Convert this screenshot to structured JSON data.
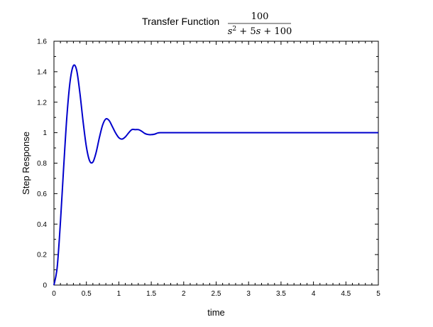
{
  "chart_data": {
    "type": "line",
    "title": {
      "prefix": "Transfer Function",
      "numerator": "100",
      "denominator": {
        "s_var": "s",
        "exponent": "2",
        "rest": " + 5",
        "s_var2": "s",
        "tail": " + 100"
      }
    },
    "xlabel": "time",
    "ylabel": "Step Response",
    "xlim": [
      0,
      5
    ],
    "ylim": [
      0,
      1.6
    ],
    "x_ticks": [
      "0",
      "0.5",
      "1",
      "1.5",
      "2",
      "2.5",
      "3",
      "3.5",
      "4",
      "4.5",
      "5"
    ],
    "y_ticks": [
      "0",
      "0.2",
      "0.4",
      "0.6",
      "0.8",
      "1",
      "1.2",
      "1.4",
      "1.6"
    ],
    "grid": false,
    "series": [
      {
        "color": "#0000cc",
        "x": [
          0,
          0.05,
          0.1,
          0.15,
          0.2,
          0.25,
          0.3,
          0.35,
          0.4,
          0.45,
          0.5,
          0.55,
          0.6,
          0.65,
          0.7,
          0.75,
          0.8,
          0.85,
          0.9,
          0.95,
          1.0,
          1.05,
          1.1,
          1.15,
          1.2,
          1.25,
          1.3,
          1.35,
          1.4,
          1.45,
          1.5,
          1.55,
          1.6,
          1.65,
          1.7,
          1.75,
          1.8,
          1.85,
          1.9,
          1.95,
          2.0,
          2.1,
          2.2,
          2.3,
          2.4,
          2.5,
          2.6,
          2.8,
          3.0,
          3.5,
          4.0,
          4.5,
          5.0
        ],
        "y": [
          0,
          0.117,
          0.413,
          0.775,
          1.11,
          1.34,
          1.44,
          1.41,
          1.26,
          1.07,
          0.907,
          0.815,
          0.807,
          0.87,
          0.967,
          1.05,
          1.09,
          1.08,
          1.04,
          0.998,
          0.967,
          0.958,
          0.972,
          0.998,
          1.02,
          1.02,
          1.02,
          1.01,
          0.995,
          0.988,
          0.987,
          0.99,
          0.998,
          1.0,
          1.0,
          1.0,
          1.0,
          1.0,
          1.0,
          1.0,
          1.0,
          1.0,
          1.0,
          1.0,
          1.0,
          1.0,
          1.0,
          1.0,
          1.0,
          1.0,
          1.0,
          1.0,
          1.0
        ]
      }
    ]
  }
}
